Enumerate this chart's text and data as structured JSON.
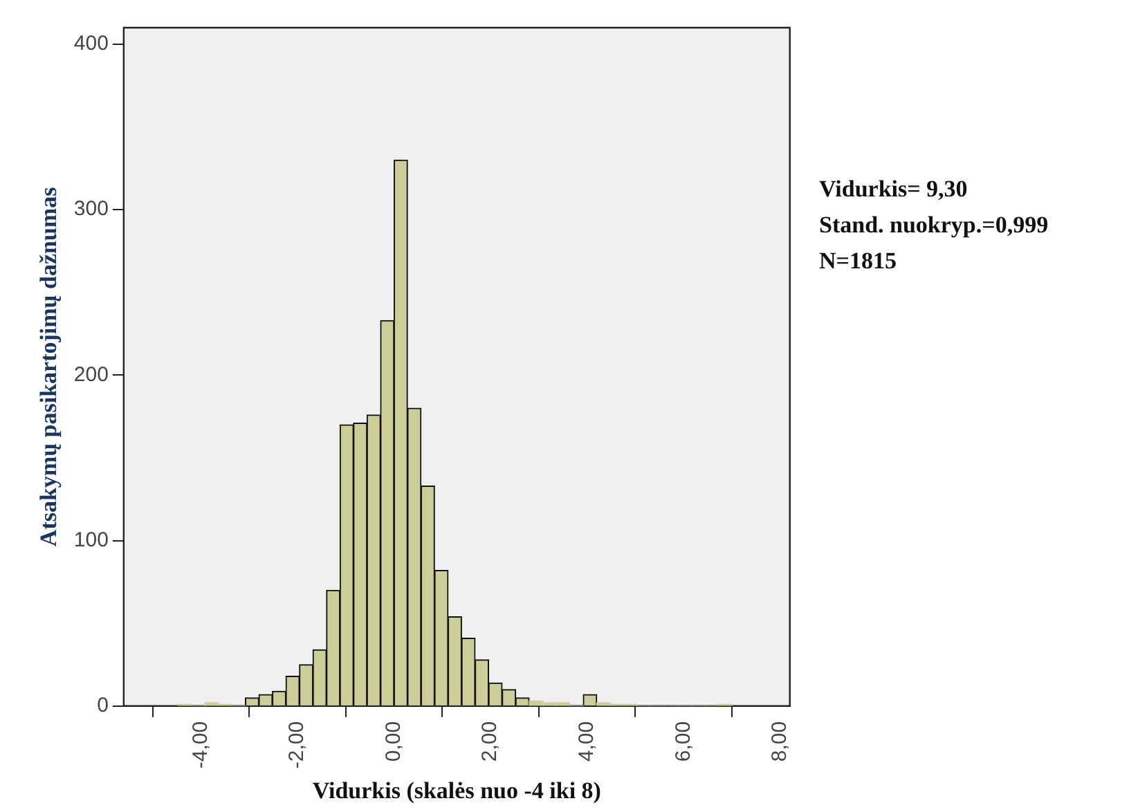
{
  "chart_data": {
    "type": "histogram",
    "xlabel": "Vidurkis (skalės nuo -4 iki 8)",
    "ylabel": "Atsakymų pasikartojimų dažnumas",
    "bins": [
      -4.48,
      -4.2,
      -3.92,
      -3.64,
      -3.36,
      -3.08,
      -2.8,
      -2.52,
      -2.24,
      -1.96,
      -1.68,
      -1.4,
      -1.12,
      -0.84,
      -0.56,
      -0.28,
      0,
      0.28,
      0.56,
      0.84,
      1.12,
      1.4,
      1.68,
      1.96,
      2.24,
      2.52,
      2.8,
      3.08,
      3.36,
      3.64,
      3.92,
      4.2,
      4.48,
      4.76,
      5.04,
      5.32,
      5.6,
      5.88,
      6.16,
      6.44,
      6.72,
      7.0
    ],
    "values": [
      1,
      0,
      2,
      1,
      0,
      5,
      7,
      9,
      18,
      25,
      34,
      70,
      170,
      171,
      176,
      233,
      330,
      180,
      133,
      82,
      54,
      41,
      28,
      14,
      10,
      5,
      3,
      2,
      2,
      0,
      7,
      2,
      1,
      1,
      0,
      0,
      0,
      0,
      0,
      0,
      1
    ],
    "color": "#cdcd99",
    "xlim": [
      -5.6,
      8.2
    ],
    "xticks": [
      {
        "value": -4,
        "label": "-4,00"
      },
      {
        "value": -2,
        "label": "-2,00"
      },
      {
        "value": 0,
        "label": "0,00"
      },
      {
        "value": 2,
        "label": "2,00"
      },
      {
        "value": 4,
        "label": "4,00"
      },
      {
        "value": 6,
        "label": "6,00"
      },
      {
        "value": 8,
        "label": "8,00"
      }
    ],
    "ylim": [
      0,
      410
    ],
    "yticks": [
      0,
      100,
      200,
      300,
      400
    ],
    "annotations": [
      "Vidurkis= 9,30",
      "Stand. nuokryp.=0,999",
      "N=1815"
    ],
    "grid": false,
    "legend": false
  }
}
